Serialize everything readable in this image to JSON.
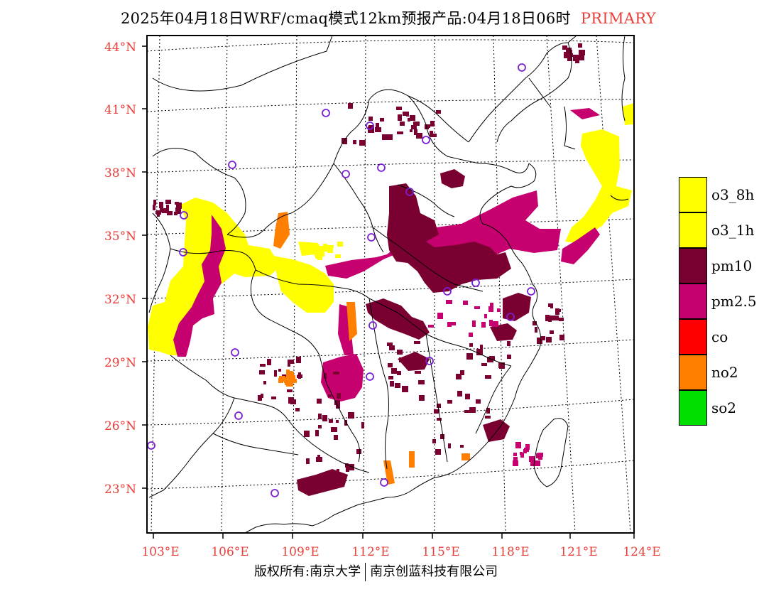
{
  "title": {
    "main": "2025年04月18日WRF/cmaq模式12km预报产品:04月18日06时",
    "tag": "PRIMARY"
  },
  "colors": {
    "axis_label": "#e8403a",
    "o3_8h": "#ffff00",
    "o3_1h": "#ffff00",
    "pm10": "#7b0032",
    "pm25": "#c7006f",
    "co": "#ff0000",
    "no2": "#ff7f00",
    "so2": "#00e000",
    "station": "#7a1fd6"
  },
  "map": {
    "lat_labels": [
      "44°N",
      "41°N",
      "38°N",
      "35°N",
      "32°N",
      "29°N",
      "26°N",
      "23°N"
    ],
    "lon_labels": [
      "103°E",
      "106°E",
      "109°E",
      "112°E",
      "115°E",
      "118°E",
      "121°E",
      "124°E"
    ],
    "lat_values": [
      44,
      41,
      38,
      35,
      32,
      29,
      26,
      23
    ],
    "lon_values": [
      103,
      106,
      109,
      112,
      115,
      118,
      121,
      124
    ]
  },
  "legend": [
    {
      "label": "o3_8h",
      "color": "#ffff00"
    },
    {
      "label": "o3_1h",
      "color": "#ffff00"
    },
    {
      "label": "pm10",
      "color": "#7b0032"
    },
    {
      "label": "pm2.5",
      "color": "#c7006f"
    },
    {
      "label": "co",
      "color": "#ff0000"
    },
    {
      "label": "no2",
      "color": "#ff7f00"
    },
    {
      "label": "so2",
      "color": "#00e000"
    }
  ],
  "footer": {
    "left": "版权所有:南京大学",
    "right": "南京创蓝科技有限公司"
  }
}
